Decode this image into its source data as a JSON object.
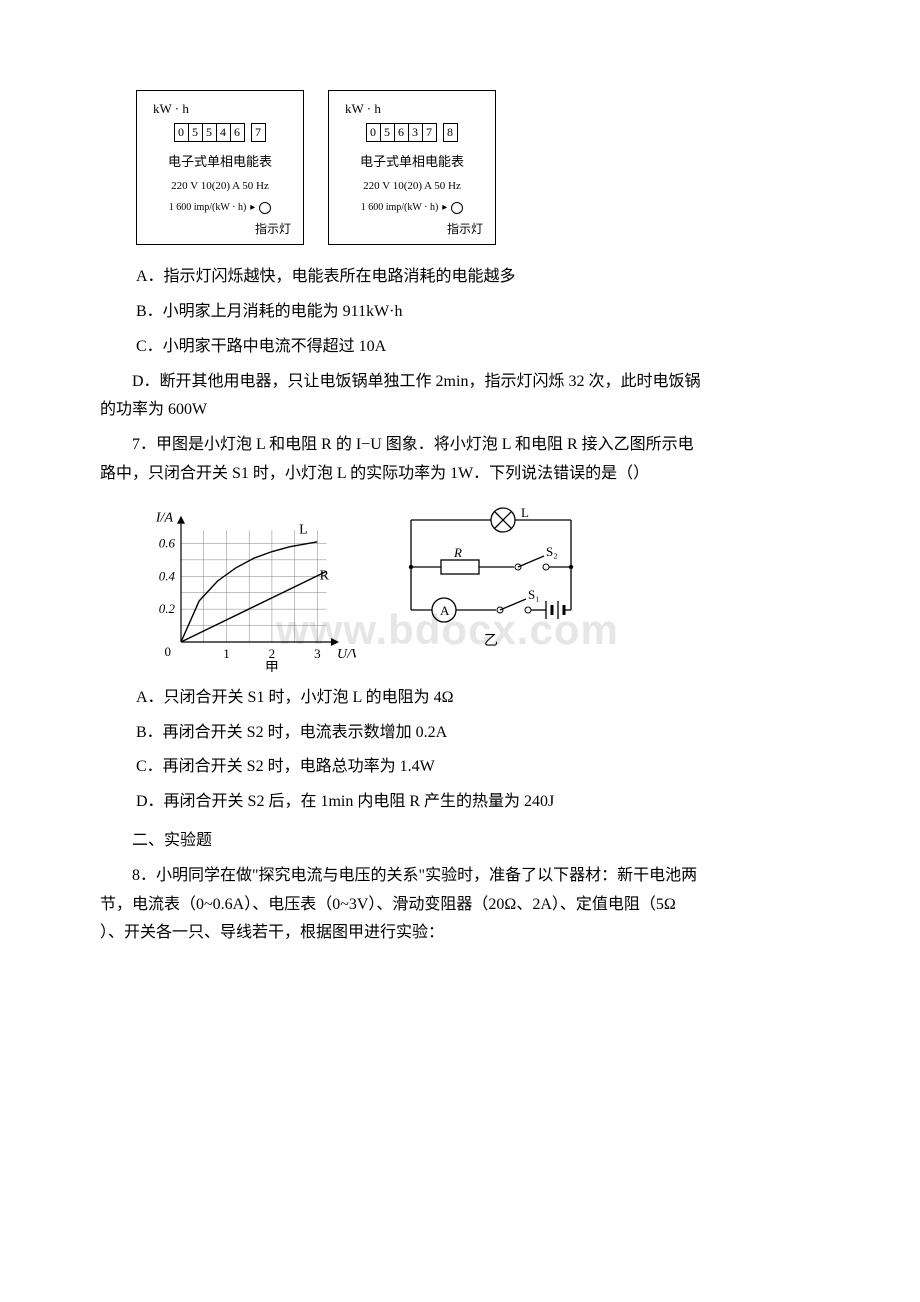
{
  "meter_left": {
    "unit": "kW · h",
    "digits": [
      "0",
      "5",
      "5",
      "4",
      "6",
      "7"
    ],
    "title": "电子式单相电能表",
    "spec1": "220 V 10(20) A 50 Hz",
    "spec2": "1 600 imp/(kW · h)",
    "lamp_label": "指示灯"
  },
  "meter_right": {
    "unit": "kW · h",
    "digits": [
      "0",
      "5",
      "6",
      "3",
      "7",
      "8"
    ],
    "title": "电子式单相电能表",
    "spec1": "220 V 10(20) A 50 Hz",
    "spec2": "1 600 imp/(kW · h)",
    "lamp_label": "指示灯"
  },
  "q6": {
    "A": "A．指示灯闪烁越快，电能表所在电路消耗的电能越多",
    "B": "B．小明家上月消耗的电能为 911kW·h",
    "C": "C．小明家干路中电流不得超过 10A",
    "D_line1": "D．断开其他用电器，只让电饭锅单独工作 2min，指示灯闪烁 32 次，此时电饭锅",
    "D_line2": "的功率为 600W"
  },
  "q7": {
    "stem_line1": "7．甲图是小灯泡 L 和电阻 R 的 I−U 图象．将小灯泡 L 和电阻 R 接入乙图所示电",
    "stem_line2": "路中，只闭合开关 S1 时，小灯泡 L 的实际功率为 1W．下列说法错误的是（）",
    "chart": {
      "ylabel": "I/A",
      "xlabel": "U/V",
      "yticks": [
        "0",
        "0.2",
        "0.4",
        "0.6"
      ],
      "xticks": [
        "1",
        "2",
        "3"
      ],
      "caption": "甲",
      "label_L": "L",
      "label_R": "R",
      "L_points": [
        [
          0,
          0
        ],
        [
          0.4,
          0.25
        ],
        [
          0.8,
          0.37
        ],
        [
          1.2,
          0.45
        ],
        [
          1.6,
          0.51
        ],
        [
          2.0,
          0.55
        ],
        [
          2.4,
          0.58
        ],
        [
          2.8,
          0.6
        ],
        [
          3.0,
          0.61
        ]
      ],
      "R_points": [
        [
          0,
          0
        ],
        [
          3.2,
          0.43
        ]
      ],
      "axis_color": "#000000",
      "grid_color": "#808080",
      "line_color": "#000000",
      "xlim": [
        0,
        3.3
      ],
      "ylim": [
        0,
        0.7
      ]
    },
    "circuit": {
      "caption": "乙",
      "label_L": "L",
      "label_R": "R",
      "label_A": "A",
      "label_S1": "S₁",
      "label_S2": "S₂"
    },
    "A": "A．只闭合开关 S1 时，小灯泡 L 的电阻为 4Ω",
    "B": "B．再闭合开关 S2 时，电流表示数增加 0.2A",
    "C": "C．再闭合开关 S2 时，电路总功率为 1.4W",
    "D": "D．再闭合开关 S2 后，在 1min 内电阻 R 产生的热量为 240J"
  },
  "section2": "二、实验题",
  "q8": {
    "line1": "8．小明同学在做\"探究电流与电压的关系\"实验时，准备了以下器材：新干电池两",
    "line2": "节，电流表（0~0.6A）、电压表（0~3V）、滑动变阻器（20Ω、2A）、定值电阻（5Ω",
    "line3": "）、开关各一只、导线若干，根据图甲进行实验："
  },
  "watermark": "www.bdocx.com"
}
